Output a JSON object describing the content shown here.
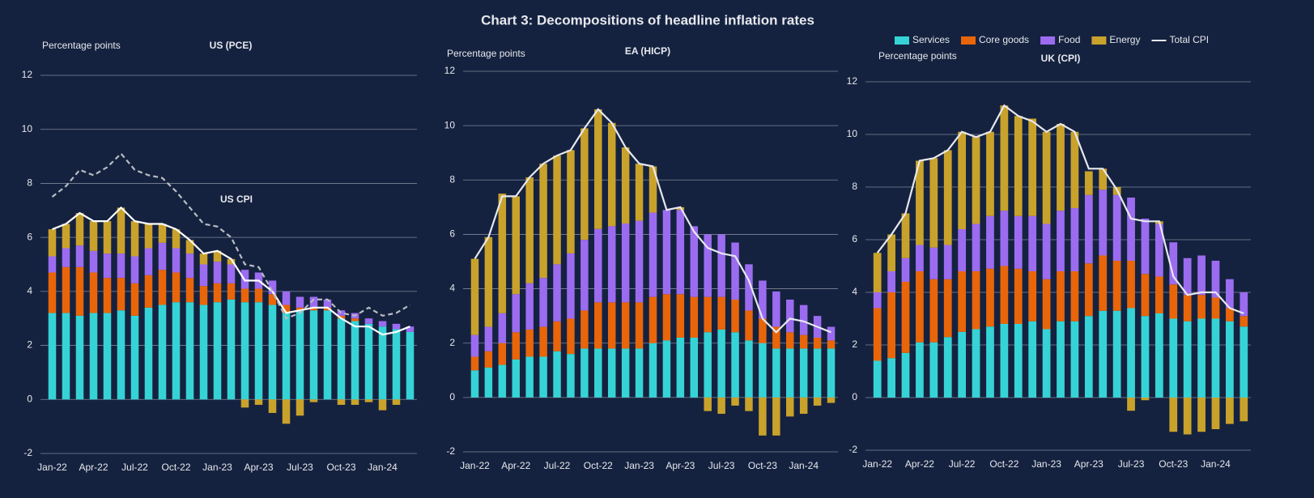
{
  "title": "Chart 3: Decompositions of headline inflation rates",
  "chart_data": [
    {
      "type": "bar",
      "title": "US (PCE)",
      "ylabel": "Percentage points",
      "categories": [
        "Jan-22",
        null,
        null,
        "Apr-22",
        null,
        null,
        "Jul-22",
        null,
        null,
        "Oct-22",
        null,
        null,
        "Jan-23",
        null,
        null,
        "Apr-23",
        null,
        null,
        "Jul-23",
        null,
        null,
        "Oct-23",
        null,
        null,
        "Jan-24",
        null,
        null
      ],
      "ylim": [
        -2,
        12
      ],
      "yticks": [
        -2,
        0,
        2,
        4,
        6,
        8,
        10,
        12
      ],
      "grid": true,
      "legend": false,
      "series": [
        {
          "name": "Services",
          "type": "bar",
          "color": "#36d3d6",
          "values": [
            3.2,
            3.2,
            3.1,
            3.2,
            3.2,
            3.3,
            3.1,
            3.4,
            3.5,
            3.6,
            3.6,
            3.5,
            3.6,
            3.7,
            3.6,
            3.6,
            3.5,
            3.2,
            3.3,
            3.3,
            3.3,
            3.0,
            2.9,
            2.8,
            2.7,
            2.6,
            2.5
          ]
        },
        {
          "name": "Core goods",
          "type": "bar",
          "color": "#e8650a",
          "values": [
            1.5,
            1.7,
            1.8,
            1.5,
            1.3,
            1.2,
            1.2,
            1.2,
            1.3,
            1.1,
            0.9,
            0.7,
            0.7,
            0.6,
            0.5,
            0.5,
            0.4,
            0.3,
            0.1,
            0.1,
            0.1,
            0.1,
            0.1,
            0.0,
            0.0,
            0.0,
            0.0
          ]
        },
        {
          "name": "Food",
          "type": "bar",
          "color": "#9b6cf0",
          "values": [
            0.6,
            0.7,
            0.8,
            0.8,
            0.9,
            0.9,
            1.0,
            1.0,
            1.0,
            0.9,
            0.9,
            0.8,
            0.8,
            0.7,
            0.7,
            0.6,
            0.5,
            0.5,
            0.4,
            0.4,
            0.3,
            0.2,
            0.2,
            0.2,
            0.2,
            0.2,
            0.2
          ]
        },
        {
          "name": "Energy",
          "type": "bar",
          "color": "#c9a22b",
          "values": [
            1.0,
            0.9,
            1.2,
            1.1,
            1.2,
            1.7,
            1.3,
            0.9,
            0.7,
            0.7,
            0.5,
            0.4,
            0.4,
            0.2,
            -0.3,
            -0.2,
            -0.5,
            -0.9,
            -0.6,
            -0.1,
            0.0,
            -0.2,
            -0.2,
            -0.1,
            -0.4,
            -0.2,
            0.0
          ]
        },
        {
          "name": "Total CPI",
          "type": "line",
          "color": "#ffffff",
          "values": [
            6.3,
            6.5,
            6.9,
            6.6,
            6.6,
            7.1,
            6.6,
            6.5,
            6.5,
            6.3,
            5.9,
            5.4,
            5.5,
            5.2,
            4.4,
            4.4,
            4.0,
            3.2,
            3.3,
            3.4,
            3.4,
            3.0,
            2.7,
            2.7,
            2.4,
            2.5,
            2.7
          ]
        },
        {
          "name": "US CPI",
          "type": "line",
          "dashed": true,
          "color": "#b8bcc4",
          "values": [
            7.5,
            7.9,
            8.5,
            8.3,
            8.6,
            9.1,
            8.5,
            8.3,
            8.2,
            7.7,
            7.1,
            6.5,
            6.4,
            6.0,
            5.0,
            4.9,
            4.0,
            3.0,
            3.2,
            3.7,
            3.7,
            3.2,
            3.1,
            3.4,
            3.1,
            3.2,
            3.5
          ]
        }
      ]
    },
    {
      "type": "bar",
      "title": "EA (HICP)",
      "ylabel": "Percentage points",
      "categories": [
        "Jan-22",
        null,
        null,
        "Apr-22",
        null,
        null,
        "Jul-22",
        null,
        null,
        "Oct-22",
        null,
        null,
        "Jan-23",
        null,
        null,
        "Apr-23",
        null,
        null,
        "Jul-23",
        null,
        null,
        "Oct-23",
        null,
        null,
        "Jan-24",
        null,
        null
      ],
      "ylim": [
        -2,
        12
      ],
      "yticks": [
        -2,
        0,
        2,
        4,
        6,
        8,
        10,
        12
      ],
      "grid": true,
      "legend": false,
      "series": [
        {
          "name": "Services",
          "type": "bar",
          "color": "#36d3d6",
          "values": [
            1.0,
            1.1,
            1.2,
            1.4,
            1.5,
            1.5,
            1.7,
            1.6,
            1.8,
            1.8,
            1.8,
            1.8,
            1.8,
            2.0,
            2.1,
            2.2,
            2.2,
            2.4,
            2.5,
            2.4,
            2.1,
            2.0,
            1.8,
            1.8,
            1.8,
            1.8,
            1.8
          ]
        },
        {
          "name": "Core goods",
          "type": "bar",
          "color": "#e8650a",
          "values": [
            0.5,
            0.6,
            0.8,
            1.0,
            1.0,
            1.1,
            1.1,
            1.3,
            1.4,
            1.7,
            1.7,
            1.7,
            1.7,
            1.7,
            1.7,
            1.6,
            1.5,
            1.3,
            1.2,
            1.2,
            1.1,
            0.9,
            0.8,
            0.6,
            0.5,
            0.4,
            0.3
          ]
        },
        {
          "name": "Food",
          "type": "bar",
          "color": "#9b6cf0",
          "values": [
            0.8,
            0.9,
            1.1,
            1.4,
            1.7,
            1.8,
            2.1,
            2.4,
            2.6,
            2.7,
            2.8,
            2.9,
            3.0,
            3.1,
            3.1,
            3.1,
            2.6,
            2.3,
            2.3,
            2.1,
            1.7,
            1.4,
            1.3,
            1.2,
            1.1,
            0.8,
            0.5
          ]
        },
        {
          "name": "Energy",
          "type": "bar",
          "color": "#c9a22b",
          "values": [
            2.8,
            3.3,
            4.4,
            3.6,
            3.9,
            4.2,
            4.0,
            3.8,
            4.1,
            4.4,
            3.8,
            2.8,
            2.1,
            1.7,
            0.0,
            0.1,
            0.0,
            -0.5,
            -0.6,
            -0.3,
            -0.5,
            -1.4,
            -1.4,
            -0.7,
            -0.6,
            -0.3,
            -0.2
          ]
        },
        {
          "name": "Total CPI",
          "type": "line",
          "color": "#e6e8ee",
          "values": [
            5.1,
            5.9,
            7.4,
            7.4,
            8.1,
            8.6,
            8.9,
            9.1,
            9.9,
            10.6,
            10.1,
            9.2,
            8.6,
            8.5,
            6.9,
            7.0,
            6.1,
            5.5,
            5.3,
            5.2,
            4.3,
            2.9,
            2.4,
            2.9,
            2.8,
            2.6,
            2.4
          ]
        }
      ]
    },
    {
      "type": "bar",
      "title": "UK (CPI)",
      "ylabel": "Percentage points",
      "categories": [
        "Jan-22",
        null,
        null,
        "Apr-22",
        null,
        null,
        "Jul-22",
        null,
        null,
        "Oct-22",
        null,
        null,
        "Jan-23",
        null,
        null,
        "Apr-23",
        null,
        null,
        "Jul-23",
        null,
        null,
        "Oct-23",
        null,
        null,
        "Jan-24",
        null,
        null
      ],
      "ylim": [
        -2,
        12
      ],
      "yticks": [
        -2,
        0,
        2,
        4,
        6,
        8,
        10,
        12
      ],
      "grid": true,
      "legend": true,
      "series": [
        {
          "name": "Services",
          "type": "bar",
          "color": "#36d3d6",
          "values": [
            1.4,
            1.5,
            1.7,
            2.1,
            2.1,
            2.3,
            2.5,
            2.6,
            2.7,
            2.8,
            2.8,
            2.9,
            2.6,
            2.9,
            2.9,
            3.1,
            3.3,
            3.3,
            3.4,
            3.1,
            3.2,
            3.0,
            2.9,
            3.0,
            3.0,
            2.9,
            2.7
          ]
        },
        {
          "name": "Core goods",
          "type": "bar",
          "color": "#e8650a",
          "values": [
            2.0,
            2.5,
            2.7,
            2.7,
            2.4,
            2.2,
            2.3,
            2.2,
            2.2,
            2.2,
            2.1,
            1.9,
            1.9,
            1.9,
            1.9,
            2.0,
            2.1,
            1.9,
            1.8,
            1.6,
            1.4,
            1.3,
            1.0,
            0.9,
            0.8,
            0.5,
            0.4
          ]
        },
        {
          "name": "Food",
          "type": "bar",
          "color": "#9b6cf0",
          "values": [
            0.6,
            0.8,
            0.9,
            1.0,
            1.2,
            1.3,
            1.6,
            1.8,
            2.0,
            2.1,
            2.0,
            2.1,
            2.1,
            2.3,
            2.4,
            2.6,
            2.5,
            2.5,
            2.4,
            2.1,
            2.0,
            1.6,
            1.4,
            1.5,
            1.4,
            1.1,
            0.9
          ]
        },
        {
          "name": "Energy",
          "type": "bar",
          "color": "#c9a22b",
          "values": [
            1.5,
            1.4,
            1.7,
            3.2,
            3.4,
            3.6,
            3.7,
            3.3,
            3.2,
            4.0,
            3.8,
            3.7,
            3.5,
            3.3,
            2.9,
            0.9,
            0.8,
            0.3,
            -0.5,
            -0.1,
            0.1,
            -1.3,
            -1.4,
            -1.3,
            -1.2,
            -1.0,
            -0.9
          ]
        },
        {
          "name": "Total CPI",
          "type": "line",
          "color": "#e6e8ee",
          "values": [
            5.5,
            6.2,
            7.0,
            9.0,
            9.1,
            9.4,
            10.1,
            9.9,
            10.1,
            11.1,
            10.7,
            10.5,
            10.1,
            10.4,
            10.1,
            8.7,
            8.7,
            7.9,
            6.8,
            6.7,
            6.7,
            4.6,
            3.9,
            4.0,
            4.0,
            3.4,
            3.2
          ]
        }
      ]
    }
  ]
}
